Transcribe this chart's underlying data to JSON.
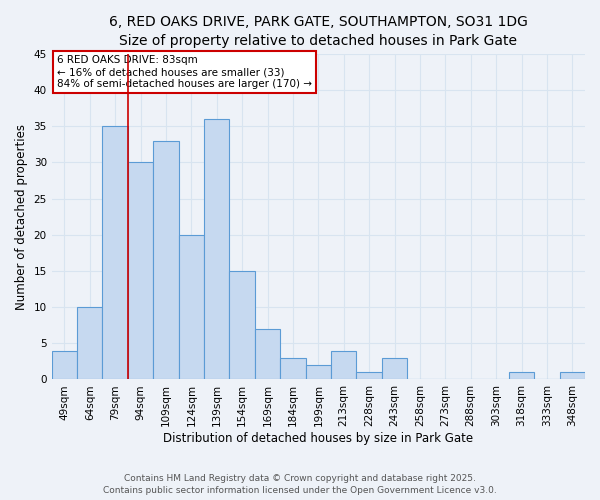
{
  "title_line1": "6, RED OAKS DRIVE, PARK GATE, SOUTHAMPTON, SO31 1DG",
  "title_line2": "Size of property relative to detached houses in Park Gate",
  "xlabel": "Distribution of detached houses by size in Park Gate",
  "ylabel": "Number of detached properties",
  "categories": [
    "49sqm",
    "64sqm",
    "79sqm",
    "94sqm",
    "109sqm",
    "124sqm",
    "139sqm",
    "154sqm",
    "169sqm",
    "184sqm",
    "199sqm",
    "213sqm",
    "228sqm",
    "243sqm",
    "258sqm",
    "273sqm",
    "288sqm",
    "303sqm",
    "318sqm",
    "333sqm",
    "348sqm"
  ],
  "values": [
    4,
    10,
    35,
    30,
    33,
    20,
    36,
    15,
    7,
    3,
    2,
    4,
    1,
    3,
    0,
    0,
    0,
    0,
    1,
    0,
    1
  ],
  "bar_color": "#c6d9f0",
  "bar_edge_color": "#5b9bd5",
  "red_line_x": 2.5,
  "annotation_line1": "6 RED OAKS DRIVE: 83sqm",
  "annotation_line2": "← 16% of detached houses are smaller (33)",
  "annotation_line3": "84% of semi-detached houses are larger (170) →",
  "annotation_box_color": "#ffffff",
  "annotation_box_edge_color": "#cc0000",
  "ylim": [
    0,
    45
  ],
  "yticks": [
    0,
    5,
    10,
    15,
    20,
    25,
    30,
    35,
    40,
    45
  ],
  "footer_line1": "Contains HM Land Registry data © Crown copyright and database right 2025.",
  "footer_line2": "Contains public sector information licensed under the Open Government Licence v3.0.",
  "bg_color": "#eef2f8",
  "grid_color": "#d8e4f0",
  "title_fontsize": 10,
  "subtitle_fontsize": 9,
  "axis_label_fontsize": 8.5,
  "tick_fontsize": 7.5,
  "annotation_fontsize": 7.5,
  "footer_fontsize": 6.5
}
